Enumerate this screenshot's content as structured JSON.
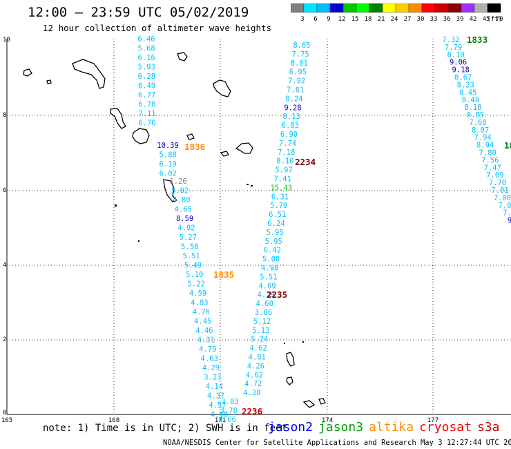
{
  "header": {
    "title": "12:00 – 23:59 UTC 05/02/2019",
    "subtitle": "12 hour collection of altimeter wave heights"
  },
  "color_scale": {
    "unit": "(ft)",
    "bins": [
      {
        "label": "3",
        "color": "#808080"
      },
      {
        "label": "6",
        "color": "#00e5ff"
      },
      {
        "label": "9",
        "color": "#00bfff"
      },
      {
        "label": "12",
        "color": "#0000cd"
      },
      {
        "label": "15",
        "color": "#00c800"
      },
      {
        "label": "18",
        "color": "#00ff00"
      },
      {
        "label": "21",
        "color": "#008000"
      },
      {
        "label": "24",
        "color": "#ffff00"
      },
      {
        "label": "27",
        "color": "#ffcc00"
      },
      {
        "label": "30",
        "color": "#ff8c00"
      },
      {
        "label": "33",
        "color": "#ff0000"
      },
      {
        "label": "36",
        "color": "#cc0000"
      },
      {
        "label": "39",
        "color": "#8b0000"
      },
      {
        "label": "42",
        "color": "#9b30ff"
      },
      {
        "label": "45",
        "color": "#b0b0b0"
      },
      {
        "label": "70",
        "color": "#000000"
      }
    ]
  },
  "axes": {
    "lon_labels": [
      "165",
      "168",
      "171",
      "174",
      "177"
    ],
    "lat_labels": [
      "10",
      "8",
      "6",
      "4",
      "2",
      "0"
    ]
  },
  "tracks": [
    {
      "satellite": "jason2",
      "color": "#00bfff",
      "time_label": "1836",
      "time_color": "#ff8c00",
      "values": [
        "6.46",
        "5.68",
        "6.16",
        "5.93",
        "6.28",
        "6.49",
        "6.77",
        "6.78",
        "7.11",
        "6.76",
        "10.39",
        "5.88",
        "6.19",
        "6.02",
        "1.26",
        "5.02",
        "4.80",
        "4.65",
        "8.59",
        "4.92",
        "5.27",
        "5.58",
        "5.51",
        "5.49",
        "5.10",
        "5.22",
        "4.59",
        "4.83",
        "4.76",
        "4.45",
        "4.46",
        "4.31",
        "4.79",
        "4.63",
        "4.29",
        "3.23",
        "4.14",
        "4.37",
        "4.57",
        "4.68"
      ]
    },
    {
      "satellite": "jason2",
      "color": "#00bfff",
      "time_label": "1835",
      "time_color": "#ff8c00",
      "values": []
    },
    {
      "satellite": "jason3",
      "color": "#00bfff",
      "time_label": "2234",
      "time_color": "#800000",
      "values": [
        "8.65",
        "7.75",
        "8.01",
        "6.95",
        "7.92",
        "7.61",
        "8.24",
        "9.28",
        "8.13",
        "6.83",
        "6.90",
        "7.74",
        "7.18",
        "8.10",
        "5.97",
        "7.41",
        "15.43",
        "6.31",
        "5.70",
        "6.51",
        "6.24",
        "5.95",
        "5.95",
        "6.42",
        "5.08",
        "4.98",
        "5.51",
        "4.69",
        "4.39",
        "4.60",
        "3.86",
        "5.12",
        "5.13",
        "5.24",
        "4.62",
        "4.81",
        "4.26",
        "4.62",
        "4.72",
        "4.38",
        "3.83",
        "3.78",
        "4.66"
      ]
    },
    {
      "satellite": "jason3",
      "color": "#00bfff",
      "time_label": "2235",
      "time_color": "#800000",
      "values": []
    },
    {
      "satellite": "jason3",
      "color": "#00bfff",
      "time_label": "2236",
      "time_color": "#cc0000",
      "values": []
    },
    {
      "satellite": "altika",
      "color": "#00bfff",
      "time_label": "1833",
      "time_color": "#008000",
      "values": [
        "7.32",
        "7.79",
        "8.10",
        "9.06",
        "9.18",
        "8.67",
        "8.23",
        "8.45",
        "8.48",
        "8.18",
        "8.85",
        "7.68",
        "8.07",
        "7.94",
        "8.94",
        "7.80",
        "7.56",
        "7.47",
        "7.09",
        "7.70",
        "7.01",
        "7.00",
        "7.0",
        "7.",
        "9"
      ]
    },
    {
      "satellite": "altika",
      "color": "#00bfff",
      "time_label": "18",
      "time_color": "#008000",
      "values": []
    }
  ],
  "footer": {
    "note": "note:  1) Time is in UTC;  2) SWH is in feet",
    "satellites": [
      {
        "name": "jason2",
        "color": "#0000ff"
      },
      {
        "name": "jason3",
        "color": "#00a000"
      },
      {
        "name": "altika",
        "color": "#ff8c00"
      },
      {
        "name": "cryosat",
        "color": "#ff0000"
      },
      {
        "name": "s3a",
        "color": "#cc0000"
      }
    ],
    "credit": "NOAA/NESDIS Center for Satellite Applications and Research    May  3 12:27:44 UTC 2019"
  }
}
